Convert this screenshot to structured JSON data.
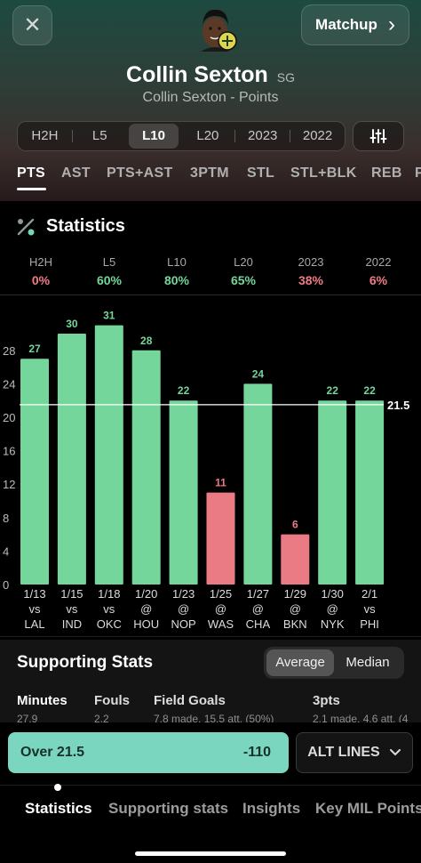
{
  "header": {
    "close_label": "✕",
    "matchup_label": "Matchup",
    "matchup_chevron": "›",
    "player_name": "Collin Sexton",
    "position": "SG",
    "subtitle": "Collin Sexton - Points",
    "avatar_icon": "player-avatar-icon",
    "periods": [
      "H2H",
      "L5",
      "L10",
      "L20",
      "2023",
      "2022"
    ],
    "active_period": "L10"
  },
  "stat_tabs": {
    "items": [
      "PTS",
      "AST",
      "PTS+AST",
      "3PTM",
      "STL",
      "STL+BLK",
      "REB",
      "P"
    ],
    "active": "PTS"
  },
  "statistics": {
    "title": "Statistics",
    "icon": "percent-icon",
    "hit_rates": [
      {
        "label": "H2H",
        "value": "0%",
        "color": "#ee7b86"
      },
      {
        "label": "L5",
        "value": "60%",
        "color": "#74d69a"
      },
      {
        "label": "L10",
        "value": "80%",
        "color": "#74d69a"
      },
      {
        "label": "L20",
        "value": "65%",
        "color": "#74d69a"
      },
      {
        "label": "2023",
        "value": "38%",
        "color": "#ee7b86"
      },
      {
        "label": "2022",
        "value": "6%",
        "color": "#ee7b86"
      }
    ]
  },
  "chart_data": {
    "type": "bar",
    "title": "",
    "xlabel": "",
    "ylabel": "",
    "ylim": [
      0,
      32
    ],
    "yticks": [
      0,
      4,
      8,
      12,
      16,
      20,
      24,
      28
    ],
    "line": 21.5,
    "line_label": "21.5",
    "over_color": "#74d69a",
    "under_color": "#ea7b85",
    "categories": [
      {
        "date": "1/13",
        "loc": "vs",
        "opp": "LAL"
      },
      {
        "date": "1/15",
        "loc": "vs",
        "opp": "IND"
      },
      {
        "date": "1/18",
        "loc": "vs",
        "opp": "OKC"
      },
      {
        "date": "1/20",
        "loc": "@",
        "opp": "HOU"
      },
      {
        "date": "1/23",
        "loc": "@",
        "opp": "NOP"
      },
      {
        "date": "1/25",
        "loc": "@",
        "opp": "WAS"
      },
      {
        "date": "1/27",
        "loc": "@",
        "opp": "CHA"
      },
      {
        "date": "1/29",
        "loc": "@",
        "opp": "BKN"
      },
      {
        "date": "1/30",
        "loc": "@",
        "opp": "NYK"
      },
      {
        "date": "2/1",
        "loc": "vs",
        "opp": "PHI"
      }
    ],
    "values": [
      27,
      30,
      31,
      28,
      22,
      11,
      24,
      6,
      22,
      22
    ]
  },
  "supporting": {
    "title": "Supporting Stats",
    "toggle": [
      "Average",
      "Median"
    ],
    "active_toggle": "Average",
    "columns": [
      {
        "label": "Minutes",
        "value": "27.9"
      },
      {
        "label": "Fouls",
        "value": "2.2"
      },
      {
        "label": "Field Goals",
        "value": "7.8 made, 15.5 att. (50%)"
      },
      {
        "label": "3pts",
        "value": "2.1 made, 4.6 att. (4"
      }
    ]
  },
  "cta": {
    "over_label": "Over 21.5",
    "odds": "-110",
    "alt_label": "ALT LINES",
    "alt_chevron": "⌄"
  },
  "bottom_nav": {
    "items": [
      "Statistics",
      "Supporting stats",
      "Insights",
      "Key MIL Points"
    ],
    "active": "Statistics"
  }
}
